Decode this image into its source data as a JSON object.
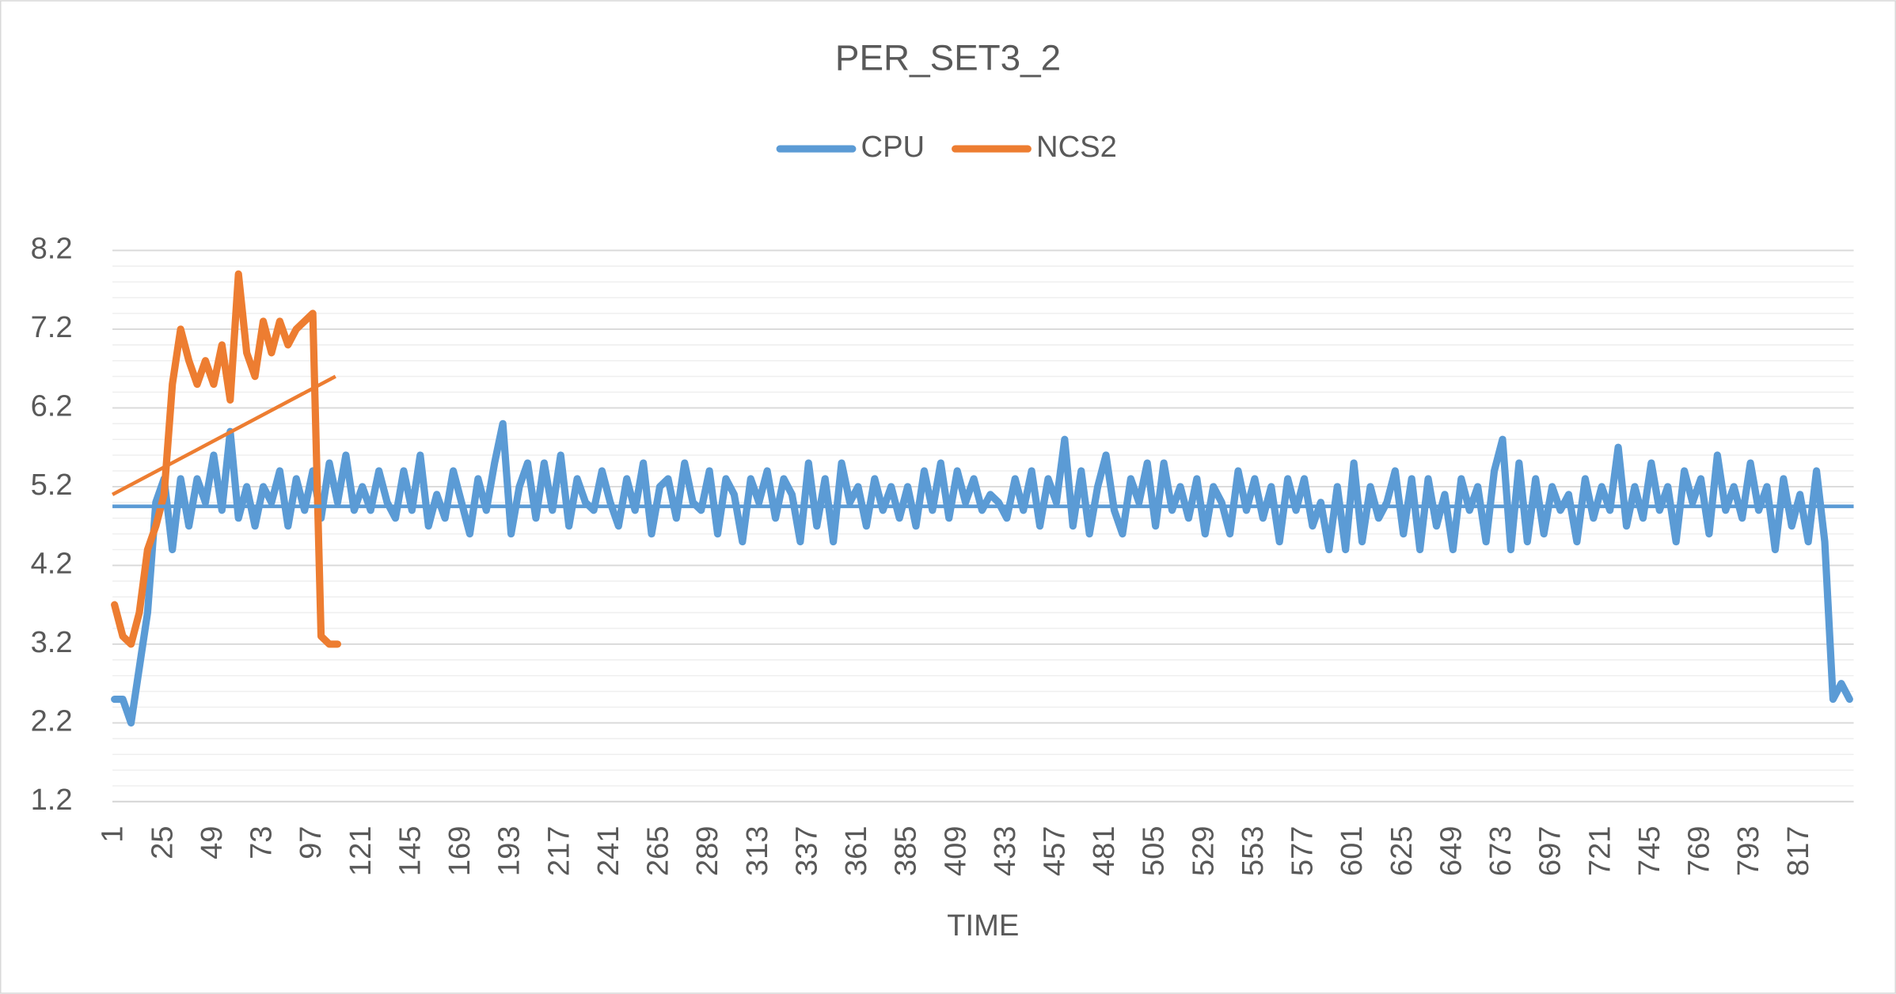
{
  "chart_data": {
    "type": "line",
    "title": "PER_SET3_2",
    "x_label": "TIME",
    "legend": "top",
    "grid": true,
    "minor_grid_divisions": 5,
    "xlim": [
      0,
      843
    ],
    "ylim": [
      1.2,
      8.2
    ],
    "yticks": [
      {
        "value": 1.2,
        "label": "1.2"
      },
      {
        "value": 2.2,
        "label": "2.2"
      },
      {
        "value": 3.2,
        "label": "3.2"
      },
      {
        "value": 4.2,
        "label": "4.2"
      },
      {
        "value": 5.2,
        "label": "5.2"
      },
      {
        "value": 6.2,
        "label": "6.2"
      },
      {
        "value": 7.2,
        "label": "7.2"
      },
      {
        "value": 8.2,
        "label": "8.2"
      }
    ],
    "xticks": [
      1,
      25,
      49,
      73,
      97,
      121,
      145,
      169,
      193,
      217,
      241,
      265,
      289,
      313,
      337,
      361,
      385,
      409,
      433,
      457,
      481,
      505,
      529,
      553,
      577,
      601,
      625,
      649,
      673,
      697,
      721,
      745,
      769,
      793,
      817
    ],
    "x": [
      1,
      5,
      9,
      13,
      17,
      21,
      25,
      29,
      33,
      37,
      41,
      45,
      49,
      53,
      57,
      61,
      65,
      69,
      73,
      77,
      81,
      85,
      89,
      93,
      97,
      101,
      105,
      109,
      113,
      117,
      121,
      125,
      129,
      133,
      137,
      141,
      145,
      149,
      153,
      157,
      161,
      165,
      169,
      173,
      177,
      181,
      185,
      189,
      193,
      197,
      201,
      205,
      209,
      213,
      217,
      221,
      225,
      229,
      233,
      237,
      241,
      245,
      249,
      253,
      257,
      261,
      265,
      269,
      273,
      277,
      281,
      285,
      289,
      293,
      297,
      301,
      305,
      309,
      313,
      317,
      321,
      325,
      329,
      333,
      337,
      341,
      345,
      349,
      353,
      357,
      361,
      365,
      369,
      373,
      377,
      381,
      385,
      389,
      393,
      397,
      401,
      405,
      409,
      413,
      417,
      421,
      425,
      429,
      433,
      437,
      441,
      445,
      449,
      453,
      457,
      461,
      465,
      469,
      473,
      477,
      481,
      485,
      489,
      493,
      497,
      501,
      505,
      509,
      513,
      517,
      521,
      525,
      529,
      533,
      537,
      541,
      545,
      549,
      553,
      557,
      561,
      565,
      569,
      573,
      577,
      581,
      585,
      589,
      593,
      597,
      601,
      605,
      609,
      613,
      617,
      621,
      625,
      629,
      633,
      637,
      641,
      645,
      649,
      653,
      657,
      661,
      665,
      669,
      673,
      677,
      681,
      685,
      689,
      693,
      697,
      701,
      705,
      709,
      713,
      717,
      721,
      725,
      729,
      733,
      737,
      741,
      745,
      749,
      753,
      757,
      761,
      765,
      769,
      773,
      777,
      781,
      785,
      789,
      793,
      797,
      801,
      805,
      809,
      813,
      817,
      821,
      825,
      829,
      833,
      837,
      841
    ],
    "series": [
      {
        "name": "CPU",
        "color": "#5b9bd5",
        "values": [
          2.5,
          2.5,
          2.2,
          2.9,
          3.6,
          5.0,
          5.3,
          4.4,
          5.3,
          4.7,
          5.3,
          5.0,
          5.6,
          4.9,
          5.9,
          4.8,
          5.2,
          4.7,
          5.2,
          5.0,
          5.4,
          4.7,
          5.3,
          4.9,
          5.4,
          4.8,
          5.5,
          5.0,
          5.6,
          4.9,
          5.2,
          4.9,
          5.4,
          5.0,
          4.8,
          5.4,
          4.9,
          5.6,
          4.7,
          5.1,
          4.8,
          5.4,
          5.0,
          4.6,
          5.3,
          4.9,
          5.5,
          6.0,
          4.6,
          5.2,
          5.5,
          4.8,
          5.5,
          4.9,
          5.6,
          4.7,
          5.3,
          5.0,
          4.9,
          5.4,
          5.0,
          4.7,
          5.3,
          4.9,
          5.5,
          4.6,
          5.2,
          5.3,
          4.8,
          5.5,
          5.0,
          4.9,
          5.4,
          4.6,
          5.3,
          5.1,
          4.5,
          5.3,
          5.0,
          5.4,
          4.8,
          5.3,
          5.1,
          4.5,
          5.5,
          4.7,
          5.3,
          4.5,
          5.5,
          5.0,
          5.2,
          4.7,
          5.3,
          4.9,
          5.2,
          4.8,
          5.2,
          4.7,
          5.4,
          4.9,
          5.5,
          4.8,
          5.4,
          5.0,
          5.3,
          4.9,
          5.1,
          5.0,
          4.8,
          5.3,
          4.9,
          5.4,
          4.7,
          5.3,
          5.0,
          5.8,
          4.7,
          5.4,
          4.6,
          5.2,
          5.6,
          4.9,
          4.6,
          5.3,
          5.0,
          5.5,
          4.7,
          5.5,
          4.9,
          5.2,
          4.8,
          5.3,
          4.6,
          5.2,
          5.0,
          4.6,
          5.4,
          4.9,
          5.3,
          4.8,
          5.2,
          4.5,
          5.3,
          4.9,
          5.3,
          4.7,
          5.0,
          4.4,
          5.2,
          4.4,
          5.5,
          4.5,
          5.2,
          4.8,
          5.0,
          5.4,
          4.6,
          5.3,
          4.4,
          5.3,
          4.7,
          5.1,
          4.4,
          5.3,
          4.9,
          5.2,
          4.5,
          5.4,
          5.8,
          4.4,
          5.5,
          4.5,
          5.3,
          4.6,
          5.2,
          4.9,
          5.1,
          4.5,
          5.3,
          4.8,
          5.2,
          4.9,
          5.7,
          4.7,
          5.2,
          4.8,
          5.5,
          4.9,
          5.2,
          4.5,
          5.4,
          5.0,
          5.3,
          4.6,
          5.6,
          4.9,
          5.2,
          4.8,
          5.5,
          4.9,
          5.2,
          4.4,
          5.3,
          4.7,
          5.1,
          4.5,
          5.4,
          4.5,
          2.5,
          2.7,
          2.5
        ],
        "trend": {
          "x": [
            0,
            843
          ],
          "values": [
            4.95,
            4.95
          ]
        }
      },
      {
        "name": "NCS2",
        "color": "#ed7d31",
        "values": [
          3.7,
          3.3,
          3.2,
          3.6,
          4.4,
          4.7,
          5.1,
          6.5,
          7.2,
          6.8,
          6.5,
          6.8,
          6.5,
          7.0,
          6.3,
          7.9,
          6.9,
          6.6,
          7.3,
          6.9,
          7.3,
          7.0,
          7.2,
          7.3,
          7.4,
          3.3,
          3.2,
          3.2,
          null,
          null,
          null,
          null,
          null,
          null,
          null,
          null,
          null,
          null,
          null,
          null,
          null,
          null,
          null,
          null,
          null,
          null,
          null,
          null,
          null,
          null,
          null,
          null,
          null,
          null,
          null,
          null,
          null,
          null,
          null,
          null,
          null,
          null,
          null,
          null,
          null,
          null,
          null,
          null,
          null,
          null,
          null,
          null,
          null,
          null,
          null,
          null,
          null,
          null,
          null,
          null,
          null,
          null,
          null,
          null,
          null,
          null,
          null,
          null,
          null,
          null,
          null,
          null,
          null,
          null,
          null,
          null,
          null,
          null,
          null,
          null,
          null,
          null,
          null,
          null,
          null,
          null,
          null,
          null,
          null,
          null,
          null,
          null,
          null,
          null,
          null,
          null,
          null,
          null,
          null,
          null,
          null,
          null,
          null,
          null,
          null,
          null,
          null,
          null,
          null,
          null,
          null,
          null,
          null,
          null,
          null,
          null,
          null,
          null,
          null,
          null,
          null,
          null,
          null,
          null,
          null,
          null,
          null,
          null,
          null,
          null,
          null,
          null,
          null,
          null,
          null,
          null,
          null,
          null,
          null,
          null,
          null,
          null,
          null,
          null,
          null,
          null,
          null,
          null,
          null,
          null,
          null,
          null,
          null,
          null,
          null,
          null,
          null,
          null,
          null,
          null,
          null,
          null,
          null,
          null,
          null,
          null,
          null,
          null,
          null,
          null,
          null,
          null,
          null,
          null,
          null,
          null,
          null,
          null,
          null,
          null,
          null,
          null,
          null,
          null,
          null,
          null,
          null,
          null,
          null,
          null,
          null
        ],
        "trend": {
          "x": [
            0,
            108
          ],
          "values": [
            5.1,
            6.6
          ]
        }
      }
    ]
  }
}
